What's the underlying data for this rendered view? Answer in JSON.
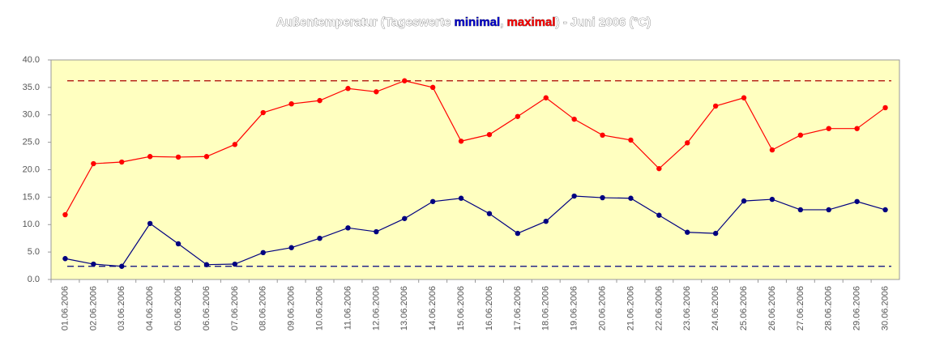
{
  "chart_data": {
    "type": "line",
    "title_parts": [
      {
        "text": "Außentemperatur (Tageswerte ",
        "color": "#ffffff"
      },
      {
        "text": "minimal",
        "color": "#0000cc"
      },
      {
        "text": ", ",
        "color": "#ffffff"
      },
      {
        "text": "maximal",
        "color": "#ff0000"
      },
      {
        "text": ") - Juni 2006 (°C)",
        "color": "#ffffff"
      }
    ],
    "categories": [
      "01.06.2006",
      "02.06.2006",
      "03.06.2006",
      "04.06.2006",
      "05.06.2006",
      "06.06.2006",
      "07.06.2006",
      "08.06.2006",
      "09.06.2006",
      "10.06.2006",
      "11.06.2006",
      "12.06.2006",
      "13.06.2006",
      "14.06.2006",
      "15.06.2006",
      "16.06.2006",
      "17.06.2006",
      "18.06.2006",
      "19.06.2006",
      "20.06.2006",
      "21.06.2006",
      "22.06.2006",
      "23.06.2006",
      "24.06.2006",
      "25.06.2006",
      "26.06.2006",
      "27.06.2006",
      "28.06.2006",
      "29.06.2006",
      "30.06.2006"
    ],
    "series": [
      {
        "name": "maximal",
        "color": "#ff0000",
        "values": [
          11.8,
          21.1,
          21.4,
          22.4,
          22.3,
          22.4,
          24.6,
          30.4,
          32.0,
          32.6,
          34.8,
          34.2,
          36.2,
          35.0,
          25.2,
          26.4,
          29.7,
          33.1,
          29.2,
          26.3,
          25.4,
          20.2,
          24.9,
          31.6,
          33.1,
          23.6,
          26.3,
          27.5,
          27.5,
          31.3
        ]
      },
      {
        "name": "minimal",
        "color": "#000080",
        "values": [
          3.8,
          2.8,
          2.4,
          10.2,
          6.5,
          2.7,
          2.8,
          4.9,
          5.8,
          7.5,
          9.4,
          8.7,
          11.1,
          14.2,
          14.8,
          12.0,
          8.4,
          10.6,
          15.2,
          14.9,
          14.8,
          11.7,
          8.6,
          8.4,
          14.3,
          14.6,
          12.7,
          12.7,
          14.2,
          12.7
        ]
      }
    ],
    "reference_lines": [
      {
        "value": 36.2,
        "color": "#aa0000"
      },
      {
        "value": 2.4,
        "color": "#000080"
      }
    ],
    "ylim": [
      0,
      40
    ],
    "yticks": [
      {
        "value": 0,
        "label": "0.0"
      },
      {
        "value": 5,
        "label": "5.0"
      },
      {
        "value": 10,
        "label": "10.0"
      },
      {
        "value": 15,
        "label": "15.0"
      },
      {
        "value": 20,
        "label": "20.0"
      },
      {
        "value": 25,
        "label": "25.0"
      },
      {
        "value": 30,
        "label": "30.0"
      },
      {
        "value": 35,
        "label": "35.0"
      },
      {
        "value": 40,
        "label": "40.0"
      }
    ],
    "background": "#ffffc0"
  }
}
